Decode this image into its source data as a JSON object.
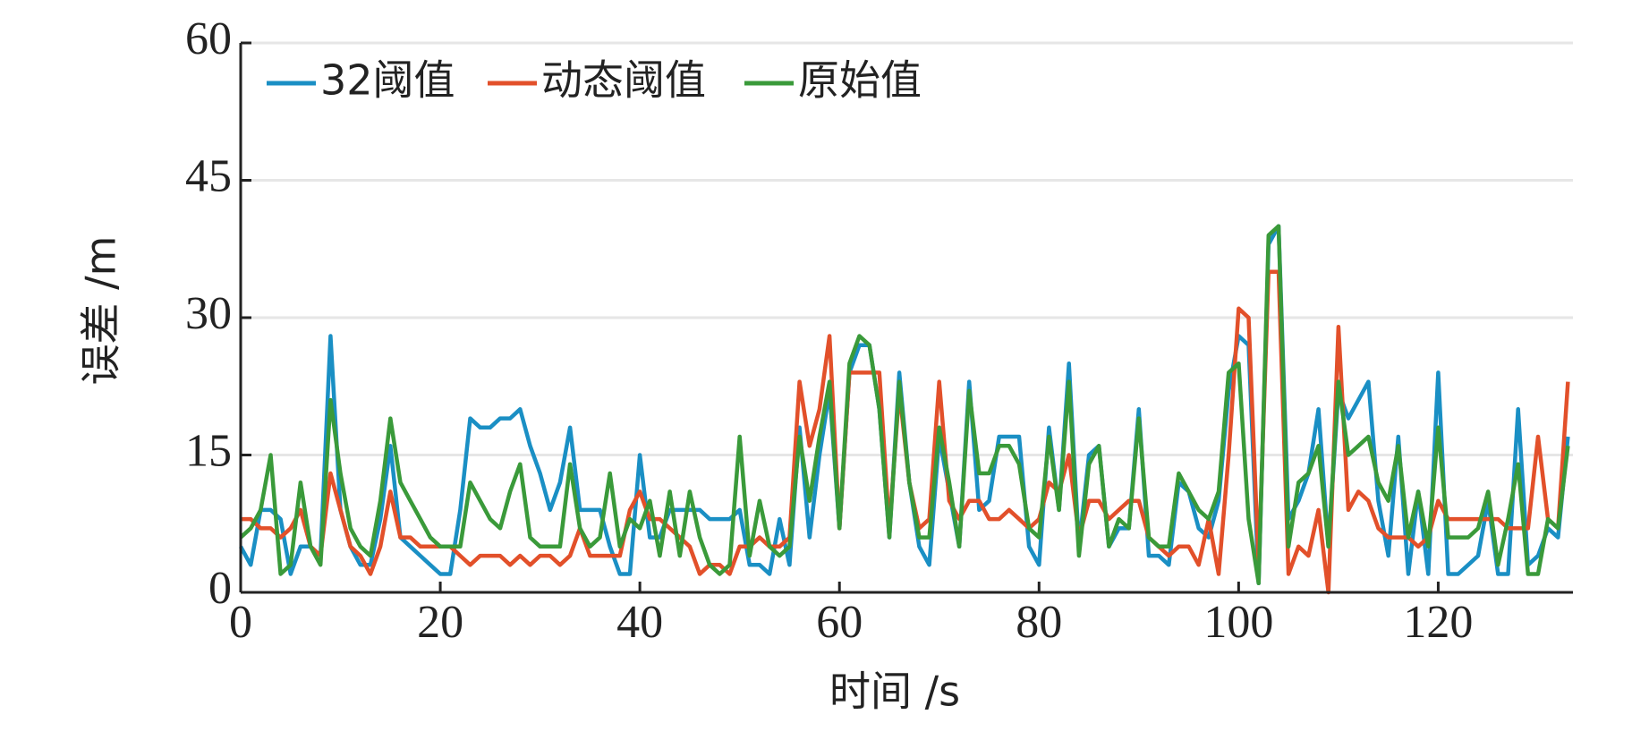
{
  "chart_data": {
    "type": "line",
    "xlabel": "时间 /s",
    "ylabel": "误差 /m",
    "xlim": [
      0,
      133.5
    ],
    "xticks": [
      0,
      20,
      40,
      60,
      80,
      100,
      120
    ],
    "ylim": [
      0,
      60
    ],
    "yticks": [
      0,
      15,
      30,
      45,
      60
    ],
    "grid": true,
    "legend": "top-left",
    "x": [
      0,
      1,
      2,
      3,
      4,
      5,
      6,
      7,
      8,
      9,
      10,
      11,
      12,
      13,
      14,
      15,
      16,
      17,
      18,
      19,
      20,
      21,
      22,
      23,
      24,
      25,
      26,
      27,
      28,
      29,
      30,
      31,
      32,
      33,
      34,
      35,
      36,
      37,
      38,
      39,
      40,
      41,
      42,
      43,
      44,
      45,
      46,
      47,
      48,
      49,
      50,
      51,
      52,
      53,
      54,
      55,
      56,
      57,
      58,
      59,
      60,
      61,
      62,
      63,
      64,
      65,
      66,
      67,
      68,
      69,
      70,
      71,
      72,
      73,
      74,
      75,
      76,
      77,
      78,
      79,
      80,
      81,
      82,
      83,
      84,
      85,
      86,
      87,
      88,
      89,
      90,
      91,
      92,
      93,
      94,
      95,
      96,
      97,
      98,
      99,
      100,
      101,
      102,
      103,
      104,
      105,
      106,
      107,
      108,
      109,
      110,
      111,
      112,
      113,
      114,
      115,
      116,
      117,
      118,
      119,
      120,
      121,
      122,
      123,
      124,
      125,
      126,
      127,
      128,
      129,
      130,
      131,
      132,
      133
    ],
    "series": [
      {
        "name": "32阈值",
        "color": "#1a8fc4",
        "values": [
          5,
          3,
          9,
          9,
          8,
          2,
          5,
          5,
          4,
          28,
          9,
          5,
          3,
          3,
          8,
          16,
          6,
          5,
          4,
          3,
          2,
          2,
          9,
          19,
          18,
          18,
          19,
          19,
          20,
          16,
          13,
          9,
          12,
          18,
          9,
          9,
          9,
          5,
          2,
          2,
          15,
          6,
          6,
          9,
          9,
          9,
          9,
          8,
          8,
          8,
          9,
          3,
          3,
          2,
          8,
          3,
          18,
          6,
          15,
          22,
          7,
          24,
          27,
          27,
          20,
          6,
          24,
          12,
          5,
          3,
          17,
          11,
          5,
          23,
          9,
          10,
          17,
          17,
          17,
          5,
          3,
          18,
          9,
          25,
          5,
          15,
          16,
          5,
          7,
          7,
          20,
          4,
          4,
          3,
          12,
          11,
          7,
          6,
          10,
          22,
          28,
          27,
          1,
          38,
          40,
          8,
          10,
          13,
          20,
          5,
          22,
          19,
          21,
          23,
          10,
          4,
          17,
          2,
          11,
          2,
          24,
          2,
          2,
          3,
          4,
          10,
          2,
          2,
          20,
          3,
          4,
          7,
          6,
          17
        ]
      },
      {
        "name": "动态阈值",
        "color": "#e2502a",
        "values": [
          8,
          8,
          7,
          7,
          6,
          7,
          9,
          5,
          4,
          13,
          9,
          5,
          4,
          2,
          5,
          11,
          6,
          6,
          5,
          5,
          5,
          5,
          4,
          3,
          4,
          4,
          4,
          3,
          4,
          3,
          4,
          4,
          3,
          4,
          7,
          4,
          4,
          4,
          4,
          9,
          11,
          8,
          8,
          7,
          6,
          5,
          2,
          3,
          3,
          2,
          5,
          5,
          6,
          5,
          5,
          6,
          23,
          16,
          20,
          28,
          7,
          24,
          24,
          24,
          24,
          7,
          22,
          12,
          7,
          8,
          23,
          10,
          8,
          10,
          10,
          8,
          8,
          9,
          8,
          7,
          8,
          12,
          11,
          15,
          6,
          10,
          10,
          8,
          9,
          10,
          10,
          6,
          5,
          4,
          5,
          5,
          3,
          8,
          2,
          15,
          31,
          30,
          3,
          35,
          35,
          2,
          5,
          4,
          9,
          0,
          29,
          9,
          11,
          10,
          7,
          6,
          6,
          6,
          5,
          6,
          10,
          8,
          8,
          8,
          8,
          8,
          8,
          7,
          7,
          7,
          17,
          8,
          7,
          23
        ]
      },
      {
        "name": "原始值",
        "color": "#3a9a3a",
        "values": [
          6,
          7,
          9,
          15,
          2,
          3,
          12,
          5,
          3,
          21,
          13,
          7,
          5,
          4,
          10,
          19,
          12,
          10,
          8,
          6,
          5,
          5,
          5,
          12,
          10,
          8,
          7,
          11,
          14,
          6,
          5,
          5,
          5,
          14,
          7,
          5,
          6,
          13,
          5,
          8,
          7,
          10,
          4,
          11,
          4,
          11,
          6,
          3,
          2,
          3,
          17,
          4,
          10,
          5,
          4,
          5,
          17,
          10,
          17,
          23,
          7,
          25,
          28,
          27,
          20,
          6,
          23,
          12,
          6,
          6,
          18,
          12,
          5,
          22,
          13,
          13,
          16,
          16,
          14,
          7,
          6,
          17,
          9,
          23,
          4,
          14,
          16,
          5,
          8,
          7,
          19,
          6,
          5,
          5,
          13,
          11,
          9,
          8,
          11,
          24,
          25,
          8,
          1,
          39,
          40,
          5,
          12,
          13,
          16,
          5,
          23,
          15,
          16,
          17,
          12,
          10,
          16,
          6,
          11,
          5,
          18,
          6,
          6,
          6,
          7,
          11,
          3,
          8,
          14,
          2,
          2,
          8,
          7,
          16
        ]
      }
    ]
  }
}
